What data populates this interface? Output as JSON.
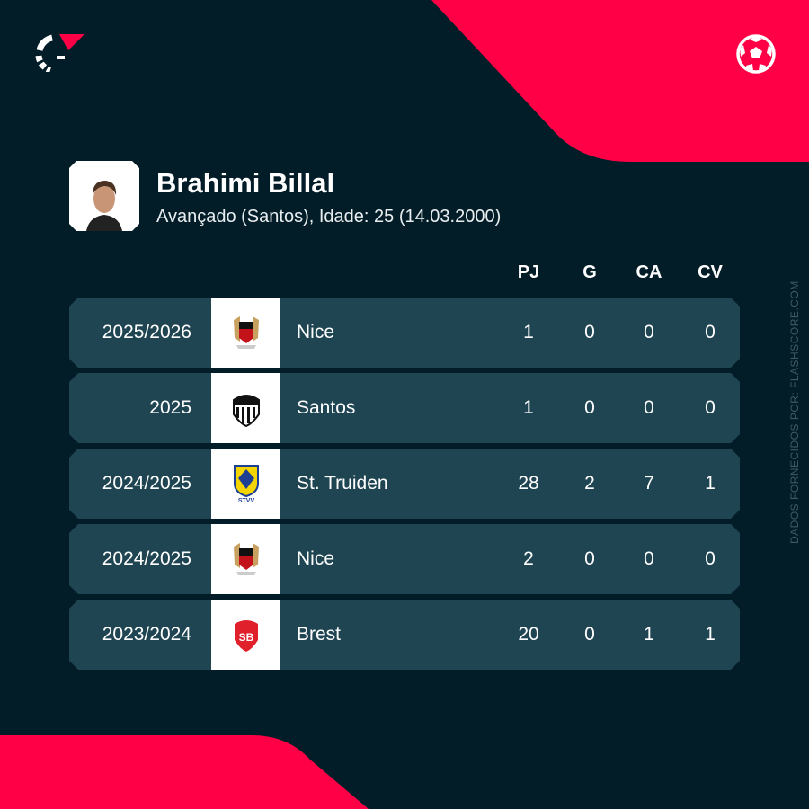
{
  "player": {
    "name": "Brahimi Billal",
    "subtitle": "Avançado (Santos), Idade: 25 (14.03.2000)"
  },
  "columns": [
    "PJ",
    "G",
    "CA",
    "CV"
  ],
  "rows": [
    {
      "season": "2025/2026",
      "club": "Nice",
      "crest": "nice-crest",
      "pj": "1",
      "g": "0",
      "ca": "0",
      "cv": "0"
    },
    {
      "season": "2025",
      "club": "Santos",
      "crest": "santos-crest",
      "pj": "1",
      "g": "0",
      "ca": "0",
      "cv": "0"
    },
    {
      "season": "2024/2025",
      "club": "St. Truiden",
      "crest": "st-truiden-crest",
      "pj": "28",
      "g": "2",
      "ca": "7",
      "cv": "1"
    },
    {
      "season": "2024/2025",
      "club": "Nice",
      "crest": "nice-crest",
      "pj": "2",
      "g": "0",
      "ca": "0",
      "cv": "0"
    },
    {
      "season": "2023/2024",
      "club": "Brest",
      "crest": "brest-crest",
      "pj": "20",
      "g": "0",
      "ca": "1",
      "cv": "1"
    }
  ],
  "source": "DADOS FORNECIDOS POR: FLASHSCORE.COM",
  "colors": {
    "background": "#031d28",
    "accent": "#ff0046",
    "row": "#1f4552"
  }
}
